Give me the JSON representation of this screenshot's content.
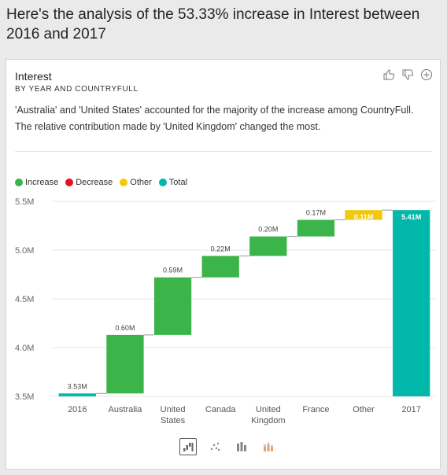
{
  "headline": "Here's the analysis of the 53.33% increase in Interest between 2016 and 2017",
  "card": {
    "title": "Interest",
    "subtitle": "BY YEAR AND COUNTRYFULL",
    "description": "'Australia' and 'United States' accounted for the majority of the increase among CountryFull. The relative contribution made by 'United Kingdom' changed the most.",
    "actions": [
      "thumbs-up-icon",
      "thumbs-down-icon",
      "add-icon"
    ]
  },
  "legend": [
    {
      "label": "Increase",
      "color": "#3bb44a"
    },
    {
      "label": "Decrease",
      "color": "#e81123"
    },
    {
      "label": "Other",
      "color": "#f2c80f"
    },
    {
      "label": "Total",
      "color": "#01b8aa"
    }
  ],
  "chart_data": {
    "type": "bar",
    "subtype": "waterfall",
    "categories": [
      "2016",
      "Australia",
      "United States",
      "Canada",
      "United Kingdom",
      "France",
      "Other",
      "2017"
    ],
    "category_lines": [
      [
        "2016"
      ],
      [
        "Australia"
      ],
      [
        "United",
        "States"
      ],
      [
        "Canada"
      ],
      [
        "United",
        "Kingdom"
      ],
      [
        "France"
      ],
      [
        "Other"
      ],
      [
        "2017"
      ]
    ],
    "bars": [
      {
        "kind": "total",
        "start": 3.5,
        "end": 3.53,
        "label": "3.53M"
      },
      {
        "kind": "increase",
        "start": 3.53,
        "end": 4.13,
        "label": "0.60M"
      },
      {
        "kind": "increase",
        "start": 4.13,
        "end": 4.72,
        "label": "0.59M"
      },
      {
        "kind": "increase",
        "start": 4.72,
        "end": 4.94,
        "label": "0.22M"
      },
      {
        "kind": "increase",
        "start": 4.94,
        "end": 5.14,
        "label": "0.20M"
      },
      {
        "kind": "increase",
        "start": 5.14,
        "end": 5.31,
        "label": "0.17M"
      },
      {
        "kind": "other",
        "start": 5.31,
        "end": 5.41,
        "label": "0.11M"
      },
      {
        "kind": "total",
        "start": 3.5,
        "end": 5.41,
        "label": "5.41M"
      }
    ],
    "ylim": [
      3.5,
      5.5
    ],
    "yticks": [
      3.5,
      4.0,
      4.5,
      5.0,
      5.5
    ],
    "ytick_labels": [
      "3.5M",
      "4.0M",
      "4.5M",
      "5.0M",
      "5.5M"
    ],
    "colors": {
      "increase": "#3bb44a",
      "decrease": "#e81123",
      "other": "#f2c80f",
      "total": "#01b8aa"
    },
    "grid": true,
    "legend_position": "top-left"
  },
  "toolbar": [
    "waterfall-chart-icon",
    "scatter-chart-icon",
    "column-chart-icon",
    "stacked-chart-icon"
  ]
}
